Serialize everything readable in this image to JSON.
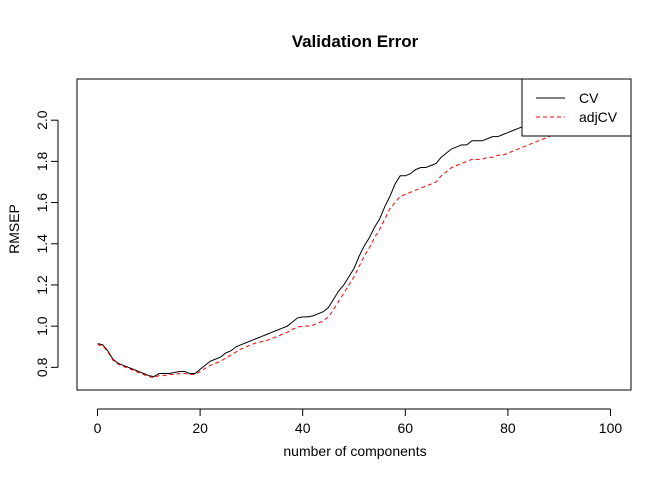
{
  "chart_data": {
    "type": "line",
    "title": "Validation Error",
    "xlabel": "number of components",
    "ylabel": "RMSEP",
    "xlim": [
      -4,
      104
    ],
    "ylim": [
      0.69,
      2.2
    ],
    "x_ticks": [
      0,
      20,
      40,
      60,
      80,
      100
    ],
    "x_tick_labels": [
      "0",
      "20",
      "40",
      "60",
      "80",
      "100"
    ],
    "y_ticks": [
      0.8,
      1.0,
      1.2,
      1.4,
      1.6,
      1.8,
      2.0
    ],
    "y_tick_labels": [
      "0.8",
      "1.0",
      "1.2",
      "1.4",
      "1.6",
      "1.8",
      "2.0"
    ],
    "legend_position": "top-right",
    "series": [
      {
        "name": "CV",
        "color": "#000000",
        "dash": "solid",
        "points": [
          [
            0,
            0.915
          ],
          [
            1,
            0.91
          ],
          [
            2,
            0.88
          ],
          [
            3,
            0.84
          ],
          [
            4,
            0.82
          ],
          [
            5,
            0.81
          ],
          [
            6,
            0.8
          ],
          [
            7,
            0.79
          ],
          [
            8,
            0.78
          ],
          [
            9,
            0.77
          ],
          [
            10,
            0.76
          ],
          [
            11,
            0.755
          ],
          [
            12,
            0.77
          ],
          [
            13,
            0.77
          ],
          [
            14,
            0.77
          ],
          [
            15,
            0.775
          ],
          [
            16,
            0.78
          ],
          [
            17,
            0.78
          ],
          [
            18,
            0.77
          ],
          [
            19,
            0.77
          ],
          [
            20,
            0.79
          ],
          [
            21,
            0.81
          ],
          [
            22,
            0.83
          ],
          [
            23,
            0.84
          ],
          [
            24,
            0.85
          ],
          [
            25,
            0.87
          ],
          [
            26,
            0.88
          ],
          [
            27,
            0.9
          ],
          [
            28,
            0.91
          ],
          [
            29,
            0.92
          ],
          [
            30,
            0.93
          ],
          [
            31,
            0.94
          ],
          [
            32,
            0.95
          ],
          [
            33,
            0.96
          ],
          [
            34,
            0.97
          ],
          [
            35,
            0.98
          ],
          [
            36,
            0.99
          ],
          [
            37,
            1.0
          ],
          [
            38,
            1.02
          ],
          [
            39,
            1.04
          ],
          [
            40,
            1.045
          ],
          [
            41,
            1.045
          ],
          [
            42,
            1.05
          ],
          [
            43,
            1.06
          ],
          [
            44,
            1.07
          ],
          [
            45,
            1.09
          ],
          [
            46,
            1.13
          ],
          [
            47,
            1.17
          ],
          [
            48,
            1.2
          ],
          [
            49,
            1.24
          ],
          [
            50,
            1.28
          ],
          [
            51,
            1.34
          ],
          [
            52,
            1.39
          ],
          [
            53,
            1.43
          ],
          [
            54,
            1.48
          ],
          [
            55,
            1.52
          ],
          [
            56,
            1.58
          ],
          [
            57,
            1.63
          ],
          [
            58,
            1.69
          ],
          [
            59,
            1.73
          ],
          [
            60,
            1.73
          ],
          [
            61,
            1.74
          ],
          [
            62,
            1.76
          ],
          [
            63,
            1.77
          ],
          [
            64,
            1.77
          ],
          [
            65,
            1.78
          ],
          [
            66,
            1.79
          ],
          [
            67,
            1.82
          ],
          [
            68,
            1.84
          ],
          [
            69,
            1.86
          ],
          [
            70,
            1.87
          ],
          [
            71,
            1.88
          ],
          [
            72,
            1.88
          ],
          [
            73,
            1.9
          ],
          [
            74,
            1.9
          ],
          [
            75,
            1.9
          ],
          [
            76,
            1.91
          ],
          [
            77,
            1.92
          ],
          [
            78,
            1.92
          ],
          [
            79,
            1.93
          ],
          [
            80,
            1.94
          ],
          [
            81,
            1.95
          ],
          [
            82,
            1.96
          ],
          [
            83,
            1.97
          ],
          [
            84,
            1.98
          ],
          [
            85,
            1.99
          ],
          [
            86,
            2.0
          ],
          [
            87,
            2.01
          ],
          [
            88,
            2.02
          ],
          [
            89,
            2.03
          ],
          [
            90,
            2.04
          ]
        ]
      },
      {
        "name": "adjCV",
        "color": "#ff0000",
        "dash": "dashed",
        "points": [
          [
            0,
            0.91
          ],
          [
            1,
            0.905
          ],
          [
            2,
            0.875
          ],
          [
            3,
            0.835
          ],
          [
            4,
            0.815
          ],
          [
            5,
            0.805
          ],
          [
            6,
            0.795
          ],
          [
            7,
            0.785
          ],
          [
            8,
            0.775
          ],
          [
            9,
            0.765
          ],
          [
            10,
            0.755
          ],
          [
            11,
            0.75
          ],
          [
            12,
            0.76
          ],
          [
            13,
            0.76
          ],
          [
            14,
            0.765
          ],
          [
            15,
            0.765
          ],
          [
            16,
            0.77
          ],
          [
            17,
            0.77
          ],
          [
            18,
            0.765
          ],
          [
            19,
            0.765
          ],
          [
            20,
            0.78
          ],
          [
            21,
            0.795
          ],
          [
            22,
            0.81
          ],
          [
            23,
            0.82
          ],
          [
            24,
            0.83
          ],
          [
            25,
            0.845
          ],
          [
            26,
            0.86
          ],
          [
            27,
            0.875
          ],
          [
            28,
            0.89
          ],
          [
            29,
            0.9
          ],
          [
            30,
            0.91
          ],
          [
            31,
            0.92
          ],
          [
            32,
            0.925
          ],
          [
            33,
            0.93
          ],
          [
            34,
            0.94
          ],
          [
            35,
            0.95
          ],
          [
            36,
            0.96
          ],
          [
            37,
            0.97
          ],
          [
            38,
            0.985
          ],
          [
            39,
            0.995
          ],
          [
            40,
            1.0
          ],
          [
            41,
            1.0
          ],
          [
            42,
            1.005
          ],
          [
            43,
            1.015
          ],
          [
            44,
            1.025
          ],
          [
            45,
            1.045
          ],
          [
            46,
            1.08
          ],
          [
            47,
            1.12
          ],
          [
            48,
            1.16
          ],
          [
            49,
            1.2
          ],
          [
            50,
            1.24
          ],
          [
            51,
            1.29
          ],
          [
            52,
            1.34
          ],
          [
            53,
            1.38
          ],
          [
            54,
            1.43
          ],
          [
            55,
            1.47
          ],
          [
            56,
            1.52
          ],
          [
            57,
            1.57
          ],
          [
            58,
            1.6
          ],
          [
            59,
            1.63
          ],
          [
            60,
            1.64
          ],
          [
            61,
            1.65
          ],
          [
            62,
            1.66
          ],
          [
            63,
            1.67
          ],
          [
            64,
            1.68
          ],
          [
            65,
            1.69
          ],
          [
            66,
            1.7
          ],
          [
            67,
            1.73
          ],
          [
            68,
            1.75
          ],
          [
            69,
            1.77
          ],
          [
            70,
            1.78
          ],
          [
            71,
            1.79
          ],
          [
            72,
            1.8
          ],
          [
            73,
            1.81
          ],
          [
            74,
            1.81
          ],
          [
            75,
            1.81
          ],
          [
            76,
            1.82
          ],
          [
            77,
            1.82
          ],
          [
            78,
            1.83
          ],
          [
            79,
            1.83
          ],
          [
            80,
            1.84
          ],
          [
            81,
            1.85
          ],
          [
            82,
            1.86
          ],
          [
            83,
            1.87
          ],
          [
            84,
            1.88
          ],
          [
            85,
            1.89
          ],
          [
            86,
            1.9
          ],
          [
            87,
            1.91
          ],
          [
            88,
            1.92
          ],
          [
            89,
            1.93
          ],
          [
            90,
            1.93
          ]
        ]
      }
    ],
    "legend": {
      "entries": [
        "CV",
        "adjCV"
      ]
    }
  }
}
